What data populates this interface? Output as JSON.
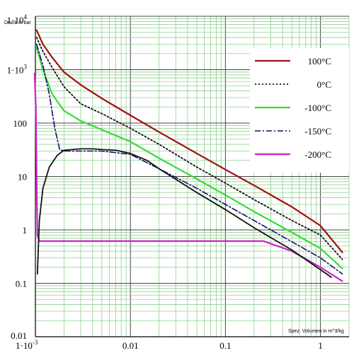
{
  "chart_data": {
    "type": "line",
    "ylabel": "Druck in bar",
    "xlabel": "Spez. Volumen in m^3/kg",
    "x_scale": "log",
    "y_scale": "log",
    "xlim": [
      0.001,
      2
    ],
    "ylim": [
      0.01,
      10000
    ],
    "grid": true,
    "grid_color": "#8fd08f",
    "legend_position": "right",
    "x_ticks": [
      {
        "value": 0.001,
        "label": "1·10",
        "sup": "-3"
      },
      {
        "value": 0.01,
        "label": "0.01",
        "sup": ""
      },
      {
        "value": 0.1,
        "label": "0.1",
        "sup": ""
      },
      {
        "value": 1,
        "label": "1",
        "sup": ""
      }
    ],
    "y_ticks": [
      {
        "value": 10000,
        "label": "1·10",
        "sup": "4"
      },
      {
        "value": 1000,
        "label": "1·10",
        "sup": "3"
      },
      {
        "value": 100,
        "label": "100",
        "sup": ""
      },
      {
        "value": 10,
        "label": "10",
        "sup": ""
      },
      {
        "value": 1,
        "label": "1",
        "sup": ""
      },
      {
        "value": 0.1,
        "label": "0.1",
        "sup": ""
      },
      {
        "value": 0.01,
        "label": "0.01",
        "sup": ""
      }
    ],
    "series": [
      {
        "name": "100°C",
        "color": "#a01010",
        "dash": "",
        "width": 2.2,
        "x": [
          0.00103,
          0.0012,
          0.0015,
          0.002,
          0.003,
          0.005,
          0.01,
          0.02,
          0.05,
          0.1,
          0.2,
          0.5,
          1,
          1.7
        ],
        "y": [
          5500,
          3000,
          1700,
          900,
          520,
          290,
          140,
          68,
          27,
          13.5,
          6.8,
          2.7,
          1.2,
          0.38
        ]
      },
      {
        "name": "0°C",
        "color": "#111111",
        "dash": "2,3",
        "width": 1.8,
        "x": [
          0.00103,
          0.0012,
          0.0015,
          0.002,
          0.003,
          0.005,
          0.01,
          0.02,
          0.05,
          0.1,
          0.2,
          0.5,
          1,
          1.7
        ],
        "y": [
          4000,
          2200,
          1100,
          480,
          230,
          150,
          80,
          40,
          15,
          7.5,
          3.7,
          1.5,
          0.8,
          0.28
        ]
      },
      {
        "name": "-100°C",
        "color": "#33dd33",
        "dash": "",
        "width": 2.2,
        "x": [
          0.00103,
          0.0012,
          0.0015,
          0.002,
          0.003,
          0.005,
          0.01,
          0.02,
          0.05,
          0.1,
          0.2,
          0.5,
          1,
          1.7
        ],
        "y": [
          2600,
          1000,
          350,
          170,
          110,
          75,
          45,
          22,
          9,
          4.5,
          2.2,
          0.9,
          0.45,
          0.19
        ]
      },
      {
        "name": "-150°C",
        "color": "#111166",
        "dash": "8,3,2,3",
        "width": 1.6,
        "x": [
          0.00103,
          0.0012,
          0.0014,
          0.0016,
          0.0018,
          0.002,
          0.003,
          0.005,
          0.01,
          0.02,
          0.05,
          0.1,
          0.2,
          0.5,
          1,
          1.7
        ],
        "y": [
          3000,
          1200,
          350,
          80,
          32,
          30,
          30,
          30,
          26,
          14,
          6,
          3,
          1.5,
          0.6,
          0.3,
          0.15
        ]
      },
      {
        "name": "-200°C",
        "color": "#cc22cc",
        "dash": "",
        "width": 2.2,
        "x": [
          0.00098,
          0.00101,
          0.00103,
          0.00105,
          0.0011,
          0.002,
          0.01,
          0.1,
          0.25,
          0.5,
          1,
          1.7
        ],
        "y": [
          850,
          200,
          10,
          0.8,
          0.62,
          0.62,
          0.62,
          0.62,
          0.62,
          0.4,
          0.2,
          0.11
        ]
      },
      {
        "name": "",
        "color": "#111111",
        "dash": "",
        "width": 1.8,
        "legend": false,
        "x": [
          0.00105,
          0.0011,
          0.0012,
          0.0014,
          0.0017,
          0.002,
          0.003,
          0.004,
          0.005,
          0.007,
          0.01,
          0.015,
          0.02,
          0.05,
          0.1,
          0.2,
          0.5,
          1,
          1.3
        ],
        "y": [
          0.15,
          1.5,
          6,
          15,
          25,
          31,
          33,
          33,
          32,
          31,
          27,
          20,
          14,
          5,
          2.4,
          1.1,
          0.42,
          0.18,
          0.13
        ]
      }
    ]
  }
}
